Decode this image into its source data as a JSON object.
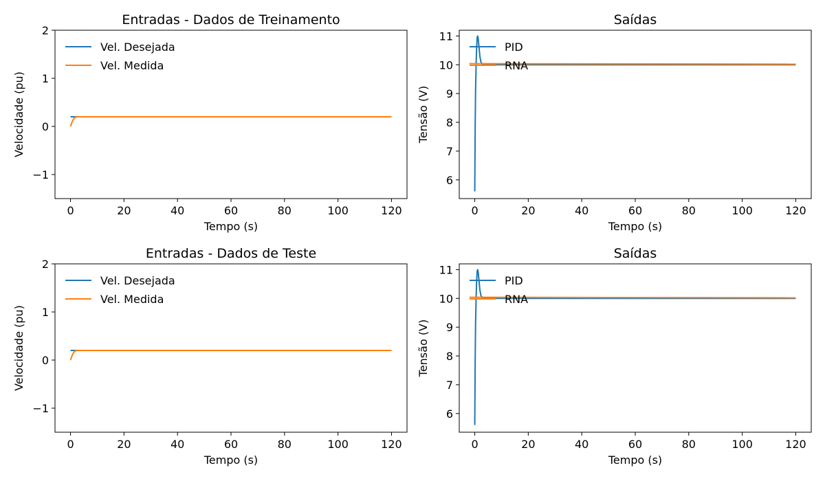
{
  "colors": {
    "series1": "#1f77b4",
    "series2": "#ff7f0e"
  },
  "chart_data": [
    {
      "type": "line",
      "title": "Entradas - Dados de Treinamento",
      "xlabel": "Tempo (s)",
      "ylabel": "Velocidade (pu)",
      "xlim": [
        -5.8,
        125.8
      ],
      "ylim": [
        -1.5,
        2
      ],
      "xticks": [
        0,
        20,
        40,
        60,
        80,
        100,
        120
      ],
      "xtick_labels": [
        "0",
        "20",
        "40",
        "60",
        "80",
        "100",
        "120"
      ],
      "yticks": [
        -1,
        0,
        1,
        2
      ],
      "ytick_labels": [
        "−1",
        "0",
        "1",
        "2"
      ],
      "legend": "upper-left",
      "series": [
        {
          "name": "Vel. Desejada",
          "color": "#1f77b4",
          "x": [
            0,
            120
          ],
          "y": [
            0.2,
            0.2
          ]
        },
        {
          "name": "Vel. Medida",
          "color": "#ff7f0e",
          "x": [
            0,
            0.5,
            1,
            1.5,
            2,
            3,
            4,
            120
          ],
          "y": [
            0,
            0.08,
            0.14,
            0.18,
            0.195,
            0.2,
            0.2,
            0.2
          ]
        }
      ]
    },
    {
      "type": "line",
      "title": "Saídas",
      "xlabel": "Tempo (s)",
      "ylabel": "Tensão (V)",
      "xlim": [
        -5.8,
        125.8
      ],
      "ylim": [
        5.35,
        11.2
      ],
      "xticks": [
        0,
        20,
        40,
        60,
        80,
        100,
        120
      ],
      "xtick_labels": [
        "0",
        "20",
        "40",
        "60",
        "80",
        "100",
        "120"
      ],
      "yticks": [
        6,
        7,
        8,
        9,
        10,
        11
      ],
      "ytick_labels": [
        "6",
        "7",
        "8",
        "9",
        "10",
        "11"
      ],
      "legend": "upper-left",
      "series": [
        {
          "name": "PID",
          "color": "#1f77b4",
          "x": [
            0,
            0.15,
            0.3,
            0.5,
            0.7,
            0.9,
            1.1,
            1.3,
            1.6,
            1.9,
            2.3,
            2.8,
            3.4,
            4.2,
            5,
            120
          ],
          "y": [
            5.6,
            7.8,
            9.1,
            10.0,
            10.6,
            10.95,
            11.0,
            10.9,
            10.6,
            10.3,
            10.1,
            10.02,
            10.0,
            10.01,
            10.0,
            10.0
          ]
        },
        {
          "name": "RNA",
          "color": "#ff7f0e",
          "x": [
            -2,
            120
          ],
          "y": [
            10.04,
            10.02
          ]
        }
      ]
    },
    {
      "type": "line",
      "title": "Entradas - Dados de Teste",
      "xlabel": "Tempo (s)",
      "ylabel": "Velocidade (pu)",
      "xlim": [
        -5.8,
        125.8
      ],
      "ylim": [
        -1.5,
        2
      ],
      "xticks": [
        0,
        20,
        40,
        60,
        80,
        100,
        120
      ],
      "xtick_labels": [
        "0",
        "20",
        "40",
        "60",
        "80",
        "100",
        "120"
      ],
      "yticks": [
        -1,
        0,
        1,
        2
      ],
      "ytick_labels": [
        "−1",
        "0",
        "1",
        "2"
      ],
      "legend": "upper-left",
      "series": [
        {
          "name": "Vel. Desejada",
          "color": "#1f77b4",
          "x": [
            0,
            120
          ],
          "y": [
            0.2,
            0.2
          ]
        },
        {
          "name": "Vel. Medida",
          "color": "#ff7f0e",
          "x": [
            0,
            0.5,
            1,
            1.5,
            2,
            3,
            4,
            120
          ],
          "y": [
            0,
            0.08,
            0.14,
            0.18,
            0.195,
            0.2,
            0.2,
            0.2
          ]
        }
      ]
    },
    {
      "type": "line",
      "title": "Saídas",
      "xlabel": "Tempo (s)",
      "ylabel": "Tensão (V)",
      "xlim": [
        -5.8,
        125.8
      ],
      "ylim": [
        5.35,
        11.2
      ],
      "xticks": [
        0,
        20,
        40,
        60,
        80,
        100,
        120
      ],
      "xtick_labels": [
        "0",
        "20",
        "40",
        "60",
        "80",
        "100",
        "120"
      ],
      "yticks": [
        6,
        7,
        8,
        9,
        10,
        11
      ],
      "ytick_labels": [
        "6",
        "7",
        "8",
        "9",
        "10",
        "11"
      ],
      "legend": "upper-left",
      "series": [
        {
          "name": "PID",
          "color": "#1f77b4",
          "x": [
            0,
            0.15,
            0.3,
            0.5,
            0.7,
            0.9,
            1.1,
            1.3,
            1.6,
            1.9,
            2.3,
            2.8,
            3.4,
            4.2,
            5,
            120
          ],
          "y": [
            5.6,
            7.8,
            9.1,
            10.0,
            10.6,
            10.95,
            11.0,
            10.9,
            10.6,
            10.3,
            10.1,
            10.02,
            10.0,
            10.01,
            10.0,
            10.0
          ]
        },
        {
          "name": "RNA",
          "color": "#ff7f0e",
          "x": [
            -2,
            120
          ],
          "y": [
            10.04,
            10.02
          ]
        }
      ]
    }
  ]
}
